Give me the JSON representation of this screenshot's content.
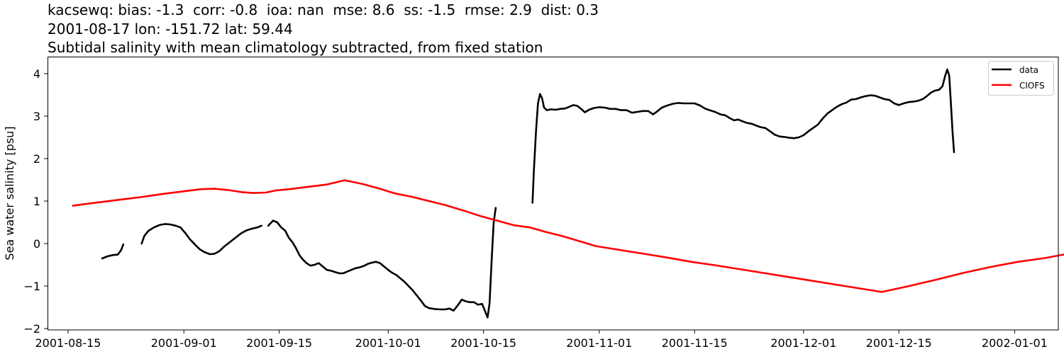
{
  "header": {
    "stats_line": "kacsewq: bias: -1.3  corr: -0.8  ioa: nan  mse: 8.6  ss: -1.5  rmse: 2.9  dist: 0.3",
    "location_line": "2001-08-17 lon: -151.72 lat: 59.44",
    "description_line": "Subtidal salinity with mean climatology subtracted, from fixed station"
  },
  "chart_data": {
    "type": "line",
    "title": "kacsewq: bias: -1.3  corr: -0.8  ioa: nan  mse: 8.6  ss: -1.5  rmse: 2.9  dist: 0.3\n2001-08-17 lon: -151.72 lat: 59.44\nSubtidal salinity with mean climatology subtracted, from fixed station",
    "xlabel": "",
    "ylabel": "Sea water salinity [psu]",
    "x_units": "days since 2001-08-15",
    "xlim": [
      -3,
      145
    ],
    "ylim": [
      -2.05,
      4.4
    ],
    "x_ticks": [
      {
        "label": "2001-08-15",
        "day": 0
      },
      {
        "label": "2001-09-01",
        "day": 17
      },
      {
        "label": "2001-09-15",
        "day": 31
      },
      {
        "label": "2001-10-01",
        "day": 47
      },
      {
        "label": "2001-10-15",
        "day": 61
      },
      {
        "label": "2001-11-01",
        "day": 78
      },
      {
        "label": "2001-11-15",
        "day": 92
      },
      {
        "label": "2001-12-01",
        "day": 108
      },
      {
        "label": "2001-12-15",
        "day": 122
      },
      {
        "label": "2002-01-01",
        "day": 139
      }
    ],
    "y_ticks": [
      {
        "label": "4",
        "value": 4
      },
      {
        "label": "3",
        "value": 3
      },
      {
        "label": "2",
        "value": 2
      },
      {
        "label": "1",
        "value": 1
      },
      {
        "label": "0",
        "value": 0
      },
      {
        "label": "−1",
        "value": -1
      },
      {
        "label": "−2",
        "value": -2
      }
    ],
    "grid": false,
    "legend_position": "upper right",
    "series": [
      {
        "name": "data",
        "color": "#000000",
        "segments": [
          [
            [
              5.0,
              -0.35
            ],
            [
              5.8,
              -0.3
            ],
            [
              6.6,
              -0.27
            ],
            [
              7.3,
              -0.26
            ],
            [
              7.8,
              -0.15
            ],
            [
              8.1,
              -0.02
            ]
          ],
          [
            [
              10.8,
              0.0
            ],
            [
              11.2,
              0.18
            ],
            [
              11.8,
              0.3
            ],
            [
              12.6,
              0.38
            ],
            [
              13.5,
              0.44
            ],
            [
              14.3,
              0.46
            ],
            [
              15.0,
              0.45
            ],
            [
              15.8,
              0.42
            ],
            [
              16.5,
              0.38
            ],
            [
              17.2,
              0.25
            ],
            [
              17.9,
              0.1
            ],
            [
              18.6,
              -0.02
            ],
            [
              19.3,
              -0.13
            ],
            [
              20.0,
              -0.2
            ],
            [
              20.8,
              -0.25
            ],
            [
              21.5,
              -0.24
            ],
            [
              22.2,
              -0.18
            ],
            [
              23.0,
              -0.06
            ],
            [
              23.8,
              0.04
            ],
            [
              24.6,
              0.14
            ],
            [
              25.4,
              0.24
            ],
            [
              26.2,
              0.31
            ],
            [
              27.0,
              0.35
            ],
            [
              27.8,
              0.38
            ],
            [
              28.4,
              0.42
            ]
          ],
          [
            [
              29.4,
              0.42
            ],
            [
              30.1,
              0.54
            ],
            [
              30.7,
              0.5
            ],
            [
              31.3,
              0.38
            ],
            [
              31.9,
              0.3
            ],
            [
              32.4,
              0.14
            ],
            [
              33.0,
              0.02
            ],
            [
              33.5,
              -0.12
            ],
            [
              34.0,
              -0.28
            ],
            [
              34.5,
              -0.38
            ],
            [
              35.0,
              -0.46
            ],
            [
              35.6,
              -0.52
            ],
            [
              36.2,
              -0.5
            ],
            [
              36.8,
              -0.46
            ],
            [
              37.4,
              -0.54
            ],
            [
              38.0,
              -0.62
            ],
            [
              38.6,
              -0.64
            ],
            [
              39.2,
              -0.67
            ],
            [
              39.8,
              -0.7
            ],
            [
              40.4,
              -0.7
            ],
            [
              41.0,
              -0.66
            ],
            [
              41.6,
              -0.62
            ],
            [
              42.2,
              -0.58
            ],
            [
              42.8,
              -0.56
            ],
            [
              43.4,
              -0.53
            ],
            [
              44.0,
              -0.48
            ],
            [
              44.6,
              -0.45
            ],
            [
              45.2,
              -0.43
            ],
            [
              45.8,
              -0.46
            ],
            [
              46.4,
              -0.54
            ],
            [
              47.0,
              -0.62
            ],
            [
              47.6,
              -0.69
            ],
            [
              48.2,
              -0.74
            ],
            [
              48.8,
              -0.82
            ],
            [
              49.4,
              -0.9
            ],
            [
              50.0,
              -1.0
            ],
            [
              50.6,
              -1.1
            ],
            [
              51.2,
              -1.22
            ],
            [
              51.8,
              -1.34
            ],
            [
              52.4,
              -1.47
            ],
            [
              53.0,
              -1.52
            ],
            [
              53.8,
              -1.54
            ],
            [
              54.6,
              -1.55
            ],
            [
              55.4,
              -1.55
            ],
            [
              56.0,
              -1.53
            ],
            [
              56.6,
              -1.58
            ],
            [
              57.2,
              -1.46
            ],
            [
              57.8,
              -1.32
            ],
            [
              58.4,
              -1.36
            ],
            [
              59.0,
              -1.38
            ],
            [
              59.6,
              -1.38
            ],
            [
              60.2,
              -1.44
            ],
            [
              60.8,
              -1.42
            ],
            [
              61.2,
              -1.58
            ],
            [
              61.6,
              -1.74
            ],
            [
              61.9,
              -1.4
            ],
            [
              62.2,
              -0.4
            ],
            [
              62.5,
              0.5
            ],
            [
              62.8,
              0.84
            ]
          ],
          [
            [
              68.2,
              0.96
            ],
            [
              68.4,
              1.7
            ],
            [
              68.7,
              2.6
            ],
            [
              69.0,
              3.3
            ],
            [
              69.3,
              3.52
            ],
            [
              69.6,
              3.42
            ],
            [
              69.9,
              3.2
            ],
            [
              70.3,
              3.14
            ],
            [
              70.9,
              3.16
            ],
            [
              71.6,
              3.15
            ],
            [
              72.3,
              3.17
            ],
            [
              73.0,
              3.18
            ],
            [
              73.6,
              3.22
            ],
            [
              74.2,
              3.26
            ],
            [
              74.8,
              3.24
            ],
            [
              75.4,
              3.16
            ],
            [
              75.9,
              3.09
            ],
            [
              76.5,
              3.15
            ],
            [
              77.2,
              3.19
            ],
            [
              78.0,
              3.21
            ],
            [
              78.8,
              3.2
            ],
            [
              79.6,
              3.17
            ],
            [
              80.4,
              3.17
            ],
            [
              81.2,
              3.14
            ],
            [
              82.0,
              3.14
            ],
            [
              82.8,
              3.08
            ],
            [
              83.6,
              3.1
            ],
            [
              84.4,
              3.12
            ],
            [
              85.2,
              3.12
            ],
            [
              85.9,
              3.04
            ],
            [
              86.5,
              3.11
            ],
            [
              87.2,
              3.2
            ],
            [
              88.0,
              3.25
            ],
            [
              88.8,
              3.29
            ],
            [
              89.6,
              3.31
            ],
            [
              90.4,
              3.3
            ],
            [
              91.2,
              3.3
            ],
            [
              92.0,
              3.3
            ],
            [
              92.8,
              3.25
            ],
            [
              93.5,
              3.18
            ],
            [
              94.2,
              3.14
            ],
            [
              95.0,
              3.1
            ],
            [
              95.8,
              3.04
            ],
            [
              96.5,
              3.02
            ],
            [
              97.2,
              2.95
            ],
            [
              97.8,
              2.9
            ],
            [
              98.4,
              2.92
            ],
            [
              99.0,
              2.88
            ],
            [
              99.7,
              2.84
            ],
            [
              100.4,
              2.82
            ],
            [
              101.0,
              2.78
            ],
            [
              101.7,
              2.74
            ],
            [
              102.4,
              2.72
            ],
            [
              103.1,
              2.64
            ],
            [
              103.8,
              2.56
            ],
            [
              104.5,
              2.52
            ],
            [
              105.2,
              2.51
            ],
            [
              105.9,
              2.49
            ],
            [
              106.6,
              2.48
            ],
            [
              107.3,
              2.5
            ],
            [
              108.0,
              2.55
            ],
            [
              108.7,
              2.64
            ],
            [
              109.4,
              2.72
            ],
            [
              110.1,
              2.8
            ],
            [
              110.8,
              2.94
            ],
            [
              111.5,
              3.06
            ],
            [
              112.2,
              3.14
            ],
            [
              112.9,
              3.22
            ],
            [
              113.6,
              3.28
            ],
            [
              114.3,
              3.32
            ],
            [
              115.0,
              3.39
            ],
            [
              115.7,
              3.4
            ],
            [
              116.4,
              3.44
            ],
            [
              117.1,
              3.47
            ],
            [
              117.8,
              3.49
            ],
            [
              118.5,
              3.48
            ],
            [
              119.2,
              3.44
            ],
            [
              119.9,
              3.4
            ],
            [
              120.6,
              3.38
            ],
            [
              121.3,
              3.3
            ],
            [
              122.0,
              3.26
            ],
            [
              122.7,
              3.3
            ],
            [
              123.4,
              3.33
            ],
            [
              124.1,
              3.34
            ],
            [
              124.8,
              3.36
            ],
            [
              125.5,
              3.4
            ],
            [
              126.1,
              3.47
            ],
            [
              126.7,
              3.55
            ],
            [
              127.3,
              3.6
            ],
            [
              127.9,
              3.62
            ],
            [
              128.4,
              3.7
            ],
            [
              128.8,
              3.95
            ],
            [
              129.1,
              4.1
            ],
            [
              129.4,
              3.95
            ],
            [
              129.6,
              3.4
            ],
            [
              129.9,
              2.6
            ],
            [
              130.1,
              2.15
            ]
          ]
        ]
      },
      {
        "name": "CIOFS",
        "color": "#ff0000",
        "segments": [
          [
            [
              0.7,
              0.89
            ],
            [
              2.5,
              0.93
            ],
            [
              5.0,
              0.98
            ],
            [
              8.0,
              1.04
            ],
            [
              11.0,
              1.1
            ],
            [
              14.0,
              1.17
            ],
            [
              17.0,
              1.23
            ],
            [
              19.5,
              1.28
            ],
            [
              21.5,
              1.29
            ],
            [
              23.5,
              1.26
            ],
            [
              25.5,
              1.21
            ],
            [
              27.2,
              1.19
            ],
            [
              29.0,
              1.2
            ],
            [
              30.5,
              1.25
            ],
            [
              32.5,
              1.28
            ],
            [
              35.0,
              1.33
            ],
            [
              38.0,
              1.39
            ],
            [
              40.6,
              1.49
            ],
            [
              43.3,
              1.4
            ],
            [
              45.8,
              1.29
            ],
            [
              48.0,
              1.18
            ],
            [
              50.5,
              1.1
            ],
            [
              53.0,
              1.0
            ],
            [
              55.5,
              0.9
            ],
            [
              58.0,
              0.78
            ],
            [
              60.5,
              0.65
            ],
            [
              63.0,
              0.54
            ],
            [
              65.5,
              0.43
            ],
            [
              67.8,
              0.38
            ],
            [
              70.0,
              0.28
            ],
            [
              72.5,
              0.18
            ],
            [
              75.0,
              0.06
            ],
            [
              77.5,
              -0.06
            ],
            [
              81.0,
              -0.15
            ],
            [
              84.5,
              -0.24
            ],
            [
              88.0,
              -0.33
            ],
            [
              91.5,
              -0.43
            ],
            [
              95.0,
              -0.51
            ],
            [
              98.5,
              -0.6
            ],
            [
              102.0,
              -0.69
            ],
            [
              105.5,
              -0.78
            ],
            [
              109.0,
              -0.87
            ],
            [
              112.5,
              -0.96
            ],
            [
              116.0,
              -1.05
            ],
            [
              119.5,
              -1.14
            ],
            [
              123.5,
              -1.0
            ],
            [
              127.5,
              -0.85
            ],
            [
              131.5,
              -0.69
            ],
            [
              135.5,
              -0.55
            ],
            [
              139.5,
              -0.43
            ],
            [
              143.5,
              -0.34
            ],
            [
              147.5,
              -0.22
            ],
            [
              151.5,
              -0.1
            ],
            [
              155.0,
              0.04
            ],
            [
              158.5,
              0.18
            ],
            [
              161.5,
              0.33
            ],
            [
              163.5,
              0.41
            ],
            [
              167.0,
              0.39
            ],
            [
              170.5,
              0.37
            ],
            [
              174.0,
              0.34
            ],
            [
              177.5,
              0.3
            ],
            [
              181.0,
              0.27
            ],
            [
              184.5,
              0.24
            ],
            [
              186.0,
              0.21
            ]
          ]
        ]
      }
    ]
  },
  "legend": {
    "items": [
      {
        "label": "data",
        "color": "#000000"
      },
      {
        "label": "CIOFS",
        "color": "#ff0000"
      }
    ]
  }
}
